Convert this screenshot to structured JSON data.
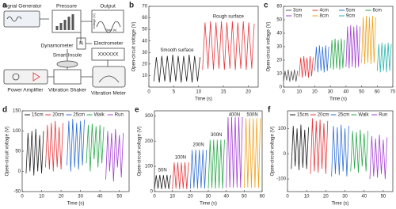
{
  "diagram": {
    "panel_label": "a",
    "signal_generator": "Signal Generator",
    "pressure": "Pressure",
    "output": "Output",
    "output_y": "Voltage (V)",
    "output_x": "Time (s)",
    "dynamometer": "Dynamometer",
    "dynamometer_unit": "N",
    "smart_insole": "Smart Insole",
    "electrometer": "Electrometer",
    "electrometer_display": "XXXXXX",
    "power_amplifier": "Power Amplifier",
    "vibration_shaker": "Vibration Shaker",
    "vibration_meter": "Vibration Meter"
  },
  "chart_data": [
    {
      "type": "line",
      "panel_label": "b",
      "xlabel": "Time (s)",
      "ylabel": "Open-circuit voltage (V)",
      "xlim": [
        0,
        22
      ],
      "xticks": [
        0,
        5,
        10,
        15,
        20
      ],
      "ylim": [
        0,
        70
      ],
      "yticks": [
        10,
        20,
        30,
        40,
        50,
        60,
        70
      ],
      "annotations": [
        "Smooth surface",
        "Rough surface"
      ],
      "series": [
        {
          "color": "#222222",
          "x": [
            1,
            1.5,
            2.1,
            2.6,
            3.2,
            3.7,
            4.3,
            4.8,
            5.4,
            5.9,
            6.5,
            7,
            7.6,
            8.1,
            8.7,
            9.2,
            9.8,
            10.3
          ],
          "values": [
            5,
            26,
            4,
            27,
            5,
            27,
            4,
            28,
            5,
            27,
            4,
            27,
            5,
            28,
            4,
            27,
            5,
            26
          ]
        },
        {
          "color": "#e8373b",
          "x": [
            10.8,
            11.3,
            11.9,
            12.4,
            13,
            13.5,
            14.1,
            14.6,
            15.2,
            15.7,
            16.3,
            16.8,
            17.4,
            17.9,
            18.5,
            19,
            19.6,
            20.1,
            20.7,
            21.2
          ],
          "values": [
            15,
            56,
            16,
            57,
            15,
            56,
            16,
            57,
            15,
            56,
            16,
            57,
            15,
            56,
            16,
            57,
            15,
            56,
            16,
            55
          ]
        }
      ]
    },
    {
      "type": "line",
      "panel_label": "c",
      "xlabel": "Time (s)",
      "ylabel": "Open-circuit voltage (V)",
      "xlim": [
        0,
        70
      ],
      "xticks": [
        0,
        10,
        20,
        30,
        40,
        50,
        60,
        70
      ],
      "ylim": [
        0,
        60
      ],
      "yticks": [
        0,
        10,
        20,
        30,
        40,
        50,
        60
      ],
      "series": [
        {
          "name": "3cm",
          "color": "#555555",
          "x": [
            0,
            1,
            2,
            3,
            4,
            5,
            6,
            7,
            8,
            9
          ],
          "values": [
            4,
            12,
            5,
            13,
            4,
            12,
            5,
            13,
            4,
            12
          ]
        },
        {
          "name": "4cm",
          "color": "#e8373b",
          "x": [
            10,
            11,
            12,
            13,
            14,
            15,
            16,
            17,
            18,
            19
          ],
          "values": [
            8,
            22,
            7,
            23,
            8,
            22,
            7,
            23,
            8,
            22
          ]
        },
        {
          "name": "5cm",
          "color": "#2f6fd6",
          "x": [
            20,
            21,
            22,
            23,
            24,
            25,
            26,
            27,
            28,
            29
          ],
          "values": [
            12,
            30,
            11,
            31,
            12,
            30,
            11,
            31,
            12,
            30
          ]
        },
        {
          "name": "6cm",
          "color": "#2aa84a",
          "x": [
            30,
            31,
            32,
            33,
            34,
            35,
            36,
            37,
            38,
            39
          ],
          "values": [
            14,
            35,
            13,
            36,
            14,
            35,
            13,
            36,
            14,
            35
          ]
        },
        {
          "name": "7cm",
          "color": "#a23fd1",
          "x": [
            40,
            41,
            42,
            43,
            44,
            45,
            46,
            47,
            48,
            49
          ],
          "values": [
            15,
            45,
            14,
            46,
            15,
            45,
            14,
            46,
            15,
            45
          ]
        },
        {
          "name": "8cm",
          "color": "#f0a21c",
          "x": [
            50,
            51,
            52,
            53,
            54,
            55,
            56,
            57,
            58,
            59
          ],
          "values": [
            18,
            52,
            17,
            53,
            18,
            52,
            17,
            53,
            18,
            52
          ]
        },
        {
          "name": "9cm",
          "color": "#2bb5ad",
          "x": [
            60,
            61,
            62,
            63,
            64,
            65,
            66,
            67,
            68,
            69
          ],
          "values": [
            12,
            32,
            11,
            33,
            12,
            32,
            11,
            33,
            12,
            32
          ]
        }
      ]
    },
    {
      "type": "line",
      "panel_label": "d",
      "xlabel": "Time (s)",
      "ylabel": "Open-circuit voltage (V)",
      "xlim": [
        0,
        55
      ],
      "xticks": [
        0,
        10,
        20,
        30,
        40,
        50
      ],
      "ylim": [
        -50,
        150
      ],
      "yticks": [
        -50,
        0,
        50,
        100,
        150
      ],
      "series": [
        {
          "name": "15cm",
          "color": "#222222",
          "x": [
            2,
            3,
            4,
            5,
            6,
            7,
            8,
            9,
            10,
            11
          ],
          "values": [
            -5,
            95,
            0,
            100,
            -10,
            105,
            0,
            90,
            -5,
            100
          ]
        },
        {
          "name": "20cm",
          "color": "#e8373b",
          "x": [
            12,
            13,
            14,
            15,
            16,
            17,
            18,
            19,
            20,
            21
          ],
          "values": [
            10,
            115,
            5,
            120,
            0,
            125,
            10,
            110,
            5,
            120
          ]
        },
        {
          "name": "25cm",
          "color": "#2f6fd6",
          "x": [
            23,
            24,
            25,
            26,
            27,
            28,
            29,
            30,
            31,
            32
          ],
          "values": [
            15,
            125,
            0,
            130,
            10,
            120,
            5,
            125,
            15,
            128
          ]
        },
        {
          "name": "Walk",
          "color": "#2aa84a",
          "x": [
            33,
            34,
            35,
            36,
            37,
            38,
            39,
            40,
            41,
            42
          ],
          "values": [
            20,
            115,
            0,
            118,
            30,
            112,
            10,
            115,
            20,
            110
          ]
        },
        {
          "name": "Run",
          "color": "#a23fd1",
          "x": [
            43,
            44,
            45,
            46,
            47,
            48,
            49,
            50,
            51,
            52
          ],
          "values": [
            -20,
            100,
            0,
            95,
            -25,
            105,
            10,
            90,
            -15,
            95
          ]
        }
      ]
    },
    {
      "type": "line",
      "panel_label": "e",
      "xlabel": "Time (s)",
      "ylabel": "Open-circuit voltage (V)",
      "xlim": [
        0,
        60
      ],
      "xticks": [
        0,
        10,
        20,
        30,
        40,
        50,
        60
      ],
      "ylim": [
        0,
        320
      ],
      "yticks": [
        0,
        100,
        200,
        300
      ],
      "annotations": [
        "50N",
        "100N",
        "200N",
        "300N",
        "400N",
        "500N"
      ],
      "series": [
        {
          "color": "#222222",
          "x": [
            0,
            1,
            2,
            3,
            4,
            5,
            6,
            7,
            8,
            9
          ],
          "values": [
            10,
            65,
            12,
            66,
            10,
            65,
            12,
            66,
            10,
            65
          ]
        },
        {
          "color": "#e8373b",
          "x": [
            10,
            11,
            12,
            13,
            14,
            15,
            16,
            17,
            18,
            19
          ],
          "values": [
            10,
            115,
            12,
            116,
            10,
            115,
            12,
            116,
            10,
            115
          ]
        },
        {
          "color": "#2f6fd6",
          "x": [
            20,
            21,
            22,
            23,
            24,
            25,
            26,
            27,
            28,
            29
          ],
          "values": [
            12,
            165,
            14,
            166,
            12,
            165,
            14,
            166,
            12,
            165
          ]
        },
        {
          "color": "#2aa84a",
          "x": [
            30,
            31,
            32,
            33,
            34,
            35,
            36,
            37,
            38,
            39
          ],
          "values": [
            12,
            205,
            14,
            206,
            12,
            205,
            14,
            206,
            12,
            205
          ]
        },
        {
          "color": "#a23fd1",
          "x": [
            40,
            41,
            42,
            43,
            44,
            45,
            46,
            47,
            48,
            49
          ],
          "values": [
            15,
            295,
            16,
            296,
            15,
            295,
            16,
            296,
            15,
            295
          ]
        },
        {
          "color": "#f0a21c",
          "x": [
            50,
            51,
            52,
            53,
            54,
            55,
            56,
            57,
            58,
            59
          ],
          "values": [
            15,
            290,
            16,
            291,
            15,
            290,
            16,
            291,
            15,
            290
          ]
        }
      ]
    },
    {
      "type": "line",
      "panel_label": "f",
      "xlabel": "Time (s)",
      "ylabel": "Open-circuit voltage (V)",
      "xlim": [
        0,
        55
      ],
      "xticks": [
        0,
        10,
        20,
        30,
        40,
        50
      ],
      "ylim": [
        -150,
        170
      ],
      "yticks": [
        -100,
        0,
        100
      ],
      "series": [
        {
          "name": "15cm",
          "color": "#222222",
          "x": [
            2,
            3,
            4,
            5,
            6,
            7,
            8,
            9,
            10,
            11
          ],
          "values": [
            -60,
            110,
            -50,
            100,
            -65,
            115,
            -55,
            95,
            -60,
            105
          ]
        },
        {
          "name": "20cm",
          "color": "#e8373b",
          "x": [
            12,
            13,
            14,
            15,
            16,
            17,
            18,
            19,
            20,
            21
          ],
          "values": [
            -80,
            140,
            -70,
            130,
            -75,
            135,
            -60,
            120,
            -80,
            130
          ]
        },
        {
          "name": "25cm",
          "color": "#2f6fd6",
          "x": [
            23,
            24,
            25,
            26,
            27,
            28,
            29,
            30,
            31,
            32
          ],
          "values": [
            -90,
            110,
            -80,
            105,
            -85,
            115,
            -70,
            100,
            -90,
            110
          ]
        },
        {
          "name": "Walk",
          "color": "#2aa84a",
          "x": [
            33,
            34,
            35,
            36,
            37,
            38,
            39,
            40,
            41,
            42
          ],
          "values": [
            -70,
            90,
            -60,
            85,
            -75,
            95,
            -50,
            80,
            -70,
            90
          ]
        },
        {
          "name": "Run",
          "color": "#a23fd1",
          "x": [
            43,
            44,
            45,
            46,
            47,
            48,
            49,
            50,
            51,
            52
          ],
          "values": [
            -100,
            70,
            -90,
            60,
            -95,
            75,
            -80,
            55,
            -100,
            65
          ]
        }
      ]
    }
  ]
}
